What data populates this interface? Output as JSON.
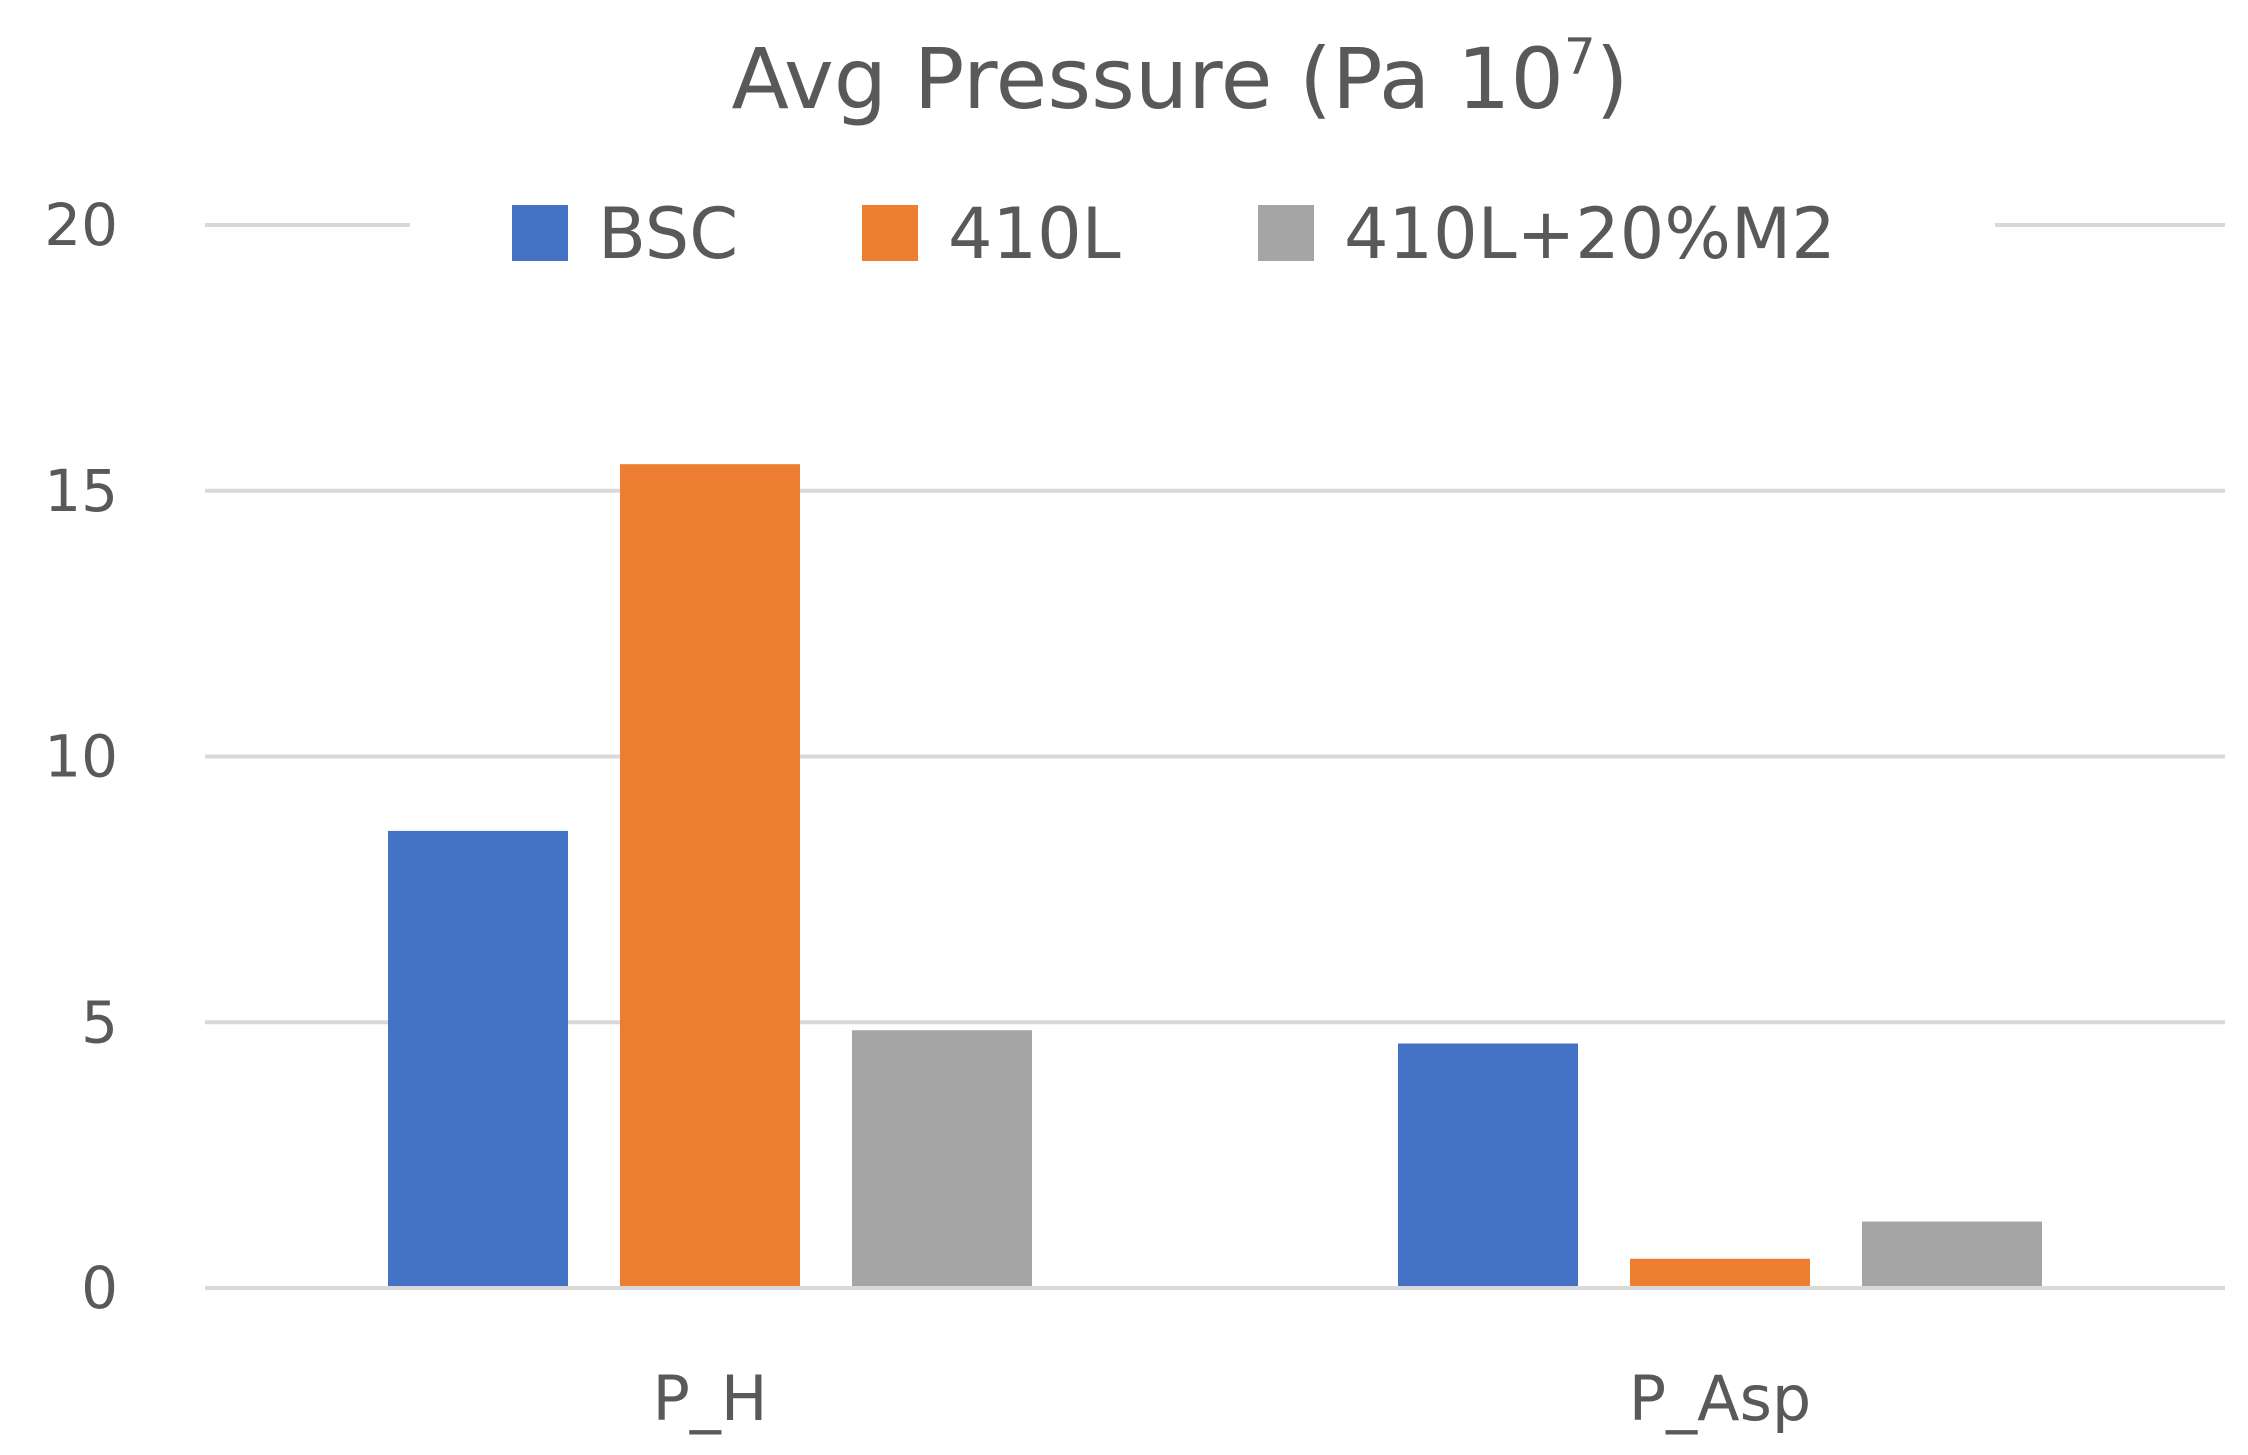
{
  "chart_data": {
    "type": "bar",
    "title": "Avg Pressure (Pa 10",
    "title_superscript": "7",
    "title_suffix": ")",
    "categories": [
      "P_H",
      "P_Asp"
    ],
    "series": [
      {
        "name": "BSC",
        "color": "#4472C4",
        "values": [
          8.6,
          4.6
        ]
      },
      {
        "name": "410L",
        "color": "#ED7D31",
        "values": [
          15.5,
          0.55
        ]
      },
      {
        "name": "410L+20%M2",
        "color": "#A5A5A5",
        "values": [
          4.85,
          1.25
        ]
      }
    ],
    "ylim": [
      0,
      20
    ],
    "yticks": [
      "0",
      "5",
      "10",
      "15",
      "20"
    ],
    "ytick_values": [
      0,
      5,
      10,
      15,
      20
    ],
    "xlabel": "",
    "ylabel": "",
    "grid": true,
    "legend_position": "top"
  }
}
